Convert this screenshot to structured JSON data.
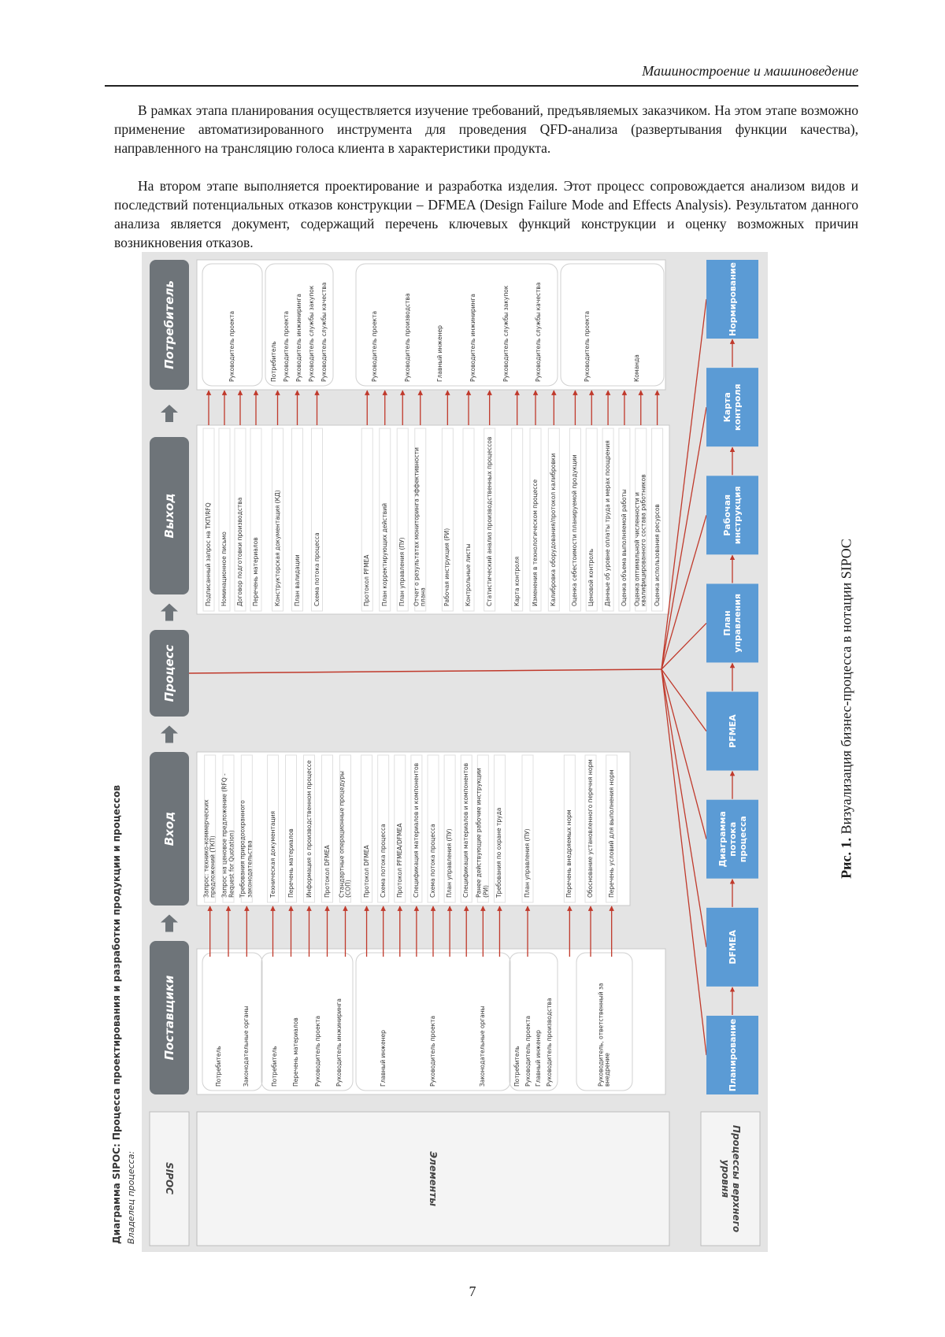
{
  "header": {
    "section": "Машиностроение и машиноведение"
  },
  "paragraphs": [
    "В рамках этапа планирования осуществляется изучение требований, предъявляемых заказчиком. На этом этапе возможно применение автоматизированного инструмента для проведения QFD-анализа (развертывания функции качества), направленного на трансляцию голоса клиента в характеристики продукта.",
    "На втором этапе выполняется проектирование и разработка изделия. Этот процесс сопровождается анализом видов и последствий потенциальных отказов конструкции – DFMEA (Design Failure Mode and Effects Analysis). Результатом данного анализа является документ, содержащий перечень ключевых функций конструкции и оценку возможных причин возникновения отказов."
  ],
  "figure": {
    "title": "Диаграмма SIPOC: Процесса проектирования и разработки продукции и процессов",
    "owner": "Владелец процесса:",
    "row_labels": {
      "sipoc": "SIPOC",
      "elements": "Элементы",
      "top_processes": "Процессы верхнего уровня"
    },
    "stages": [
      "Поставщики",
      "Вход",
      "Процесс",
      "Выход",
      "Потребитель"
    ],
    "suppliers": [
      [
        "Потребитель",
        "Законодательные органы"
      ],
      [
        "Потребитель",
        "Перечень материалов",
        "Руководитель проекта",
        "Руководитель инжиниринга"
      ],
      [
        "Главный инженер",
        "Руководитель проекта",
        "Законодательные органы"
      ],
      [
        "Потребитель",
        "Руководитель проекта",
        "Главный инженер",
        "Руководитель производства"
      ],
      [
        "Руководитель, ответственный за внедрение"
      ]
    ],
    "inputs": [
      [
        "Запрос: технико-коммерческих предложений (ТКП)",
        "Запрос на ценовое предложение (RFQ - Request for Quotation)",
        "Требования природоохранного законодательства"
      ],
      [
        "Техническая документация",
        "Перечень материалов",
        "Информация о производственном процессе",
        "Протокол DFMEA",
        "Стандартные операционные процедуры (СОП)"
      ],
      [
        "Протокол DFMEA",
        "Схема потока процесса",
        "Протокол PFMEA/DFMEA",
        "Спецификация материалов и компонентов",
        "Схема потока процесса",
        "План управления (ПУ)",
        "Спецификация материалов и компонентов",
        "Ранее действующие рабочие инструкции (РИ)",
        "Требования по охране труда"
      ],
      [
        "План управления (ПУ)"
      ],
      [
        "Перечень внедряемых норм",
        "Обоснование установленного перечня норм",
        "Перечень условий для выполнения норм"
      ]
    ],
    "outputs": [
      [
        "Подписанный запрос на ТКП/RFQ",
        "Номинационное письмо",
        "Договор подготовки производства",
        "Перечень материалов"
      ],
      [
        "Конструкторская документация (КД)",
        "План валидации",
        "Схема потока процесса"
      ],
      [
        "Протокол PFMEA",
        "План корректирующих действий",
        "План управления (ПУ)",
        "Отчет о результатах мониторинга эффективности плана"
      ],
      [
        "Рабочая инструкция (РИ)",
        "Контрольные листы",
        "Статистический анализ производственных процессов"
      ],
      [
        "Карта контроля",
        "Изменения в технологическом процессе",
        "Калибровка оборудования/протокол калибровки"
      ],
      [
        "Оценка себестоимости планируемой продукции",
        "Ценовой контроль",
        "Данные об уровне оплаты труда и мерах поощрения",
        "Оценка объема выполняемой работы",
        "Оценка оптимальной численности и квалифицированного состава работников",
        "Оценка использования ресурсов"
      ]
    ],
    "consumers": [
      [
        "Руководитель проекта"
      ],
      [
        "Потребитель",
        "Руководитель проекта",
        "Руководитель инжиниринга",
        "Руководитель службы закупок",
        "Руководитель службы качества"
      ],
      [
        "Руководитель проекта",
        "Руководитель производства",
        "Главный инженер",
        "Руководитель инжиниринга",
        "Руководитель службы закупок",
        "Руководитель службы качества"
      ],
      [
        "Руководитель проекта",
        "Команда"
      ]
    ],
    "top_processes": [
      "Планирование",
      "DFMEA",
      "Диаграмма потока процесса",
      "PFMEA",
      "План управления",
      "Рабочая инструкция",
      "Карта контроля",
      "Нормирование"
    ]
  },
  "caption": {
    "label": "Рис. 1.",
    "text": "Визуализация бизнес-процесса в нотации SIPOC"
  },
  "page_number": "7"
}
